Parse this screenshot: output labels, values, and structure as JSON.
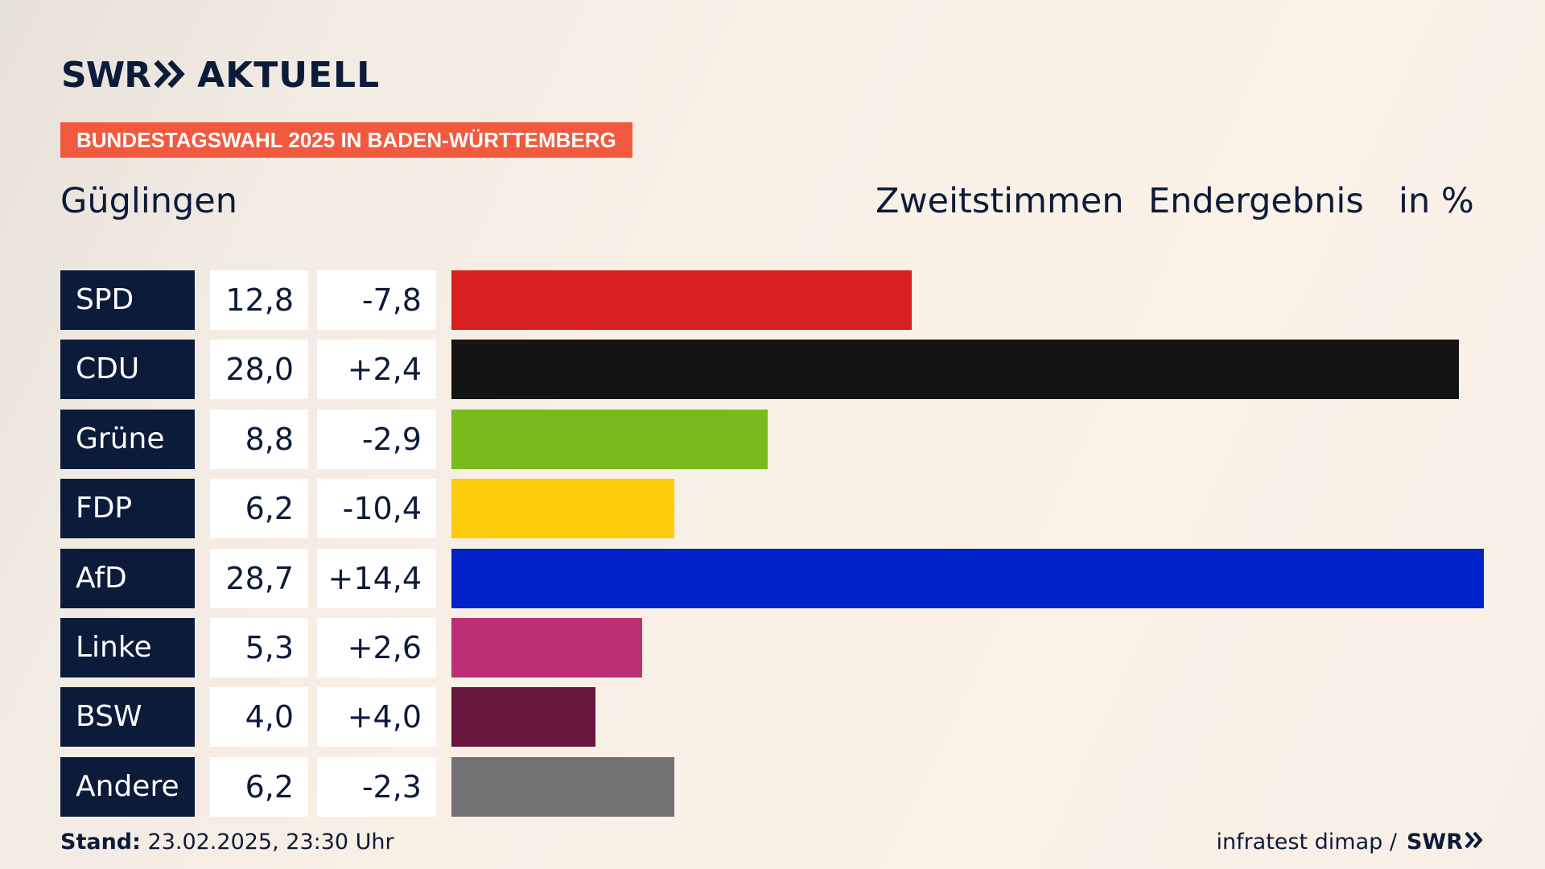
{
  "logo": {
    "brand": "SWR",
    "name": "AKTUELL"
  },
  "banner": "BUNDESTAGSWAHL 2025 IN BADEN-WÜRTTEMBERG",
  "header": {
    "place": "Güglingen",
    "vote_type": "Zweitstimmen",
    "result_type": "Endergebnis",
    "unit": "in %"
  },
  "chart_data": {
    "type": "bar",
    "orientation": "horizontal",
    "categories": [
      "SPD",
      "CDU",
      "Grüne",
      "FDP",
      "AfD",
      "Linke",
      "BSW",
      "Andere"
    ],
    "values": [
      12.8,
      28.0,
      8.8,
      6.2,
      28.7,
      5.3,
      4.0,
      6.2
    ],
    "value_labels": [
      "12,8",
      "28,0",
      "8,8",
      "6,2",
      "28,7",
      "5,3",
      "4,0",
      "6,2"
    ],
    "change_labels": [
      "-7,8",
      "+2,4",
      "-2,9",
      "-10,4",
      "+14,4",
      "+2,6",
      "+4,0",
      "-2,3"
    ],
    "changes": [
      -7.8,
      2.4,
      -2.9,
      -10.4,
      14.4,
      2.6,
      4.0,
      -2.3
    ],
    "colors": [
      "#d81f21",
      "#141414",
      "#7aba1e",
      "#ffcc0a",
      "#0022c7",
      "#bb3074",
      "#69173f",
      "#727275"
    ],
    "xlim": [
      0,
      28.7
    ],
    "grid": false,
    "legend": "none"
  },
  "footer": {
    "stand_label": "Stand:",
    "stand_value": "23.02.2025, 23:30 Uhr",
    "source": "infratest dimap /",
    "brand": "SWR"
  },
  "icons": {
    "logo_chevrons": "double-chevron-right-icon",
    "footer_chevrons": "double-chevron-right-icon"
  }
}
